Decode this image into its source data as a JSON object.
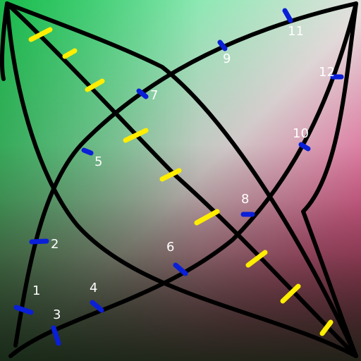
{
  "board": {
    "labels": {
      "m1": "1",
      "m2": "2",
      "m3": "3",
      "m4": "4",
      "m5": "5",
      "m6": "6",
      "m7": "7",
      "m8": "8",
      "m9": "9",
      "m10": "10",
      "m11": "11",
      "m12": "12"
    },
    "colors": {
      "curve": "#000000",
      "yellow_marks": "#ffee00",
      "blue_marks": "#0a1fd8",
      "label_text": "#ffffff"
    }
  }
}
